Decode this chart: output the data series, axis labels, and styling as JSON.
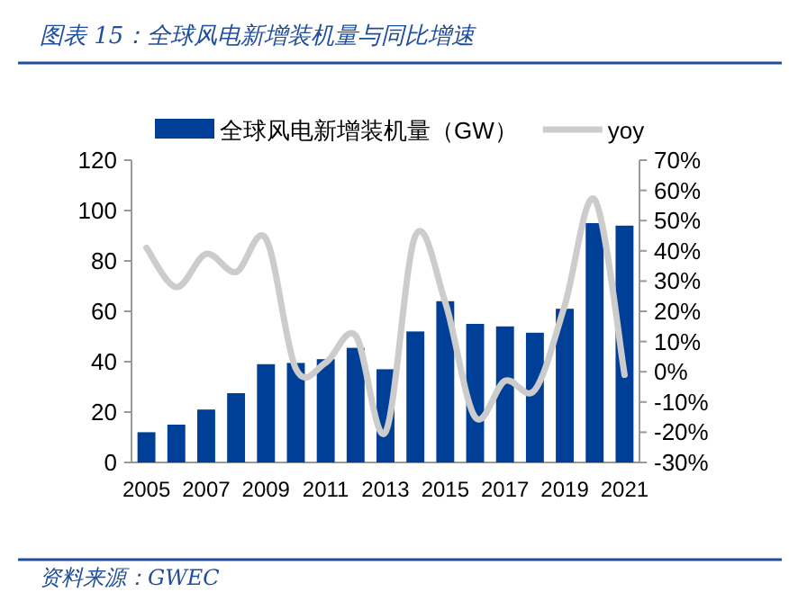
{
  "chart_data": {
    "type": "bar",
    "title": "图表 15：全球风电新增装机量与同比增速",
    "categories": [
      "2005",
      null,
      "2007",
      null,
      "2009",
      null,
      "2011",
      null,
      "2013",
      null,
      "2015",
      null,
      "2017",
      null,
      "2019",
      null,
      "2021"
    ],
    "series": [
      {
        "name": "全球风电新增装机量（GW）",
        "color": "#003f98",
        "values": [
          12,
          15,
          21,
          27.5,
          39,
          39.5,
          41,
          45.5,
          37,
          52,
          64,
          55,
          54,
          51.5,
          61,
          95,
          94
        ]
      },
      {
        "name": "yoy",
        "type": "line",
        "axis": "y2",
        "color": "#cccccc",
        "values": [
          41,
          28,
          39,
          33,
          44,
          1,
          3,
          12,
          -20,
          45,
          23,
          -15,
          -3,
          -6,
          22,
          57,
          -1
        ]
      }
    ],
    "ylim": [
      0,
      120
    ],
    "yticks": [
      0,
      20,
      40,
      60,
      80,
      100,
      120
    ],
    "y2lim": [
      -30,
      70
    ],
    "y2ticks": [
      {
        "value": -30,
        "label": "-30%"
      },
      {
        "value": -20,
        "label": "-20%"
      },
      {
        "value": -10,
        "label": "-10%"
      },
      {
        "value": 0,
        "label": "0%"
      },
      {
        "value": 10,
        "label": "10%"
      },
      {
        "value": 20,
        "label": "20%"
      },
      {
        "value": 30,
        "label": "30%"
      },
      {
        "value": 40,
        "label": "40%"
      },
      {
        "value": 50,
        "label": "50%"
      },
      {
        "value": 60,
        "label": "60%"
      },
      {
        "value": 70,
        "label": "70%"
      }
    ],
    "legend": "top",
    "grid": false,
    "annotations": [
      "资料来源：GWEC"
    ]
  }
}
